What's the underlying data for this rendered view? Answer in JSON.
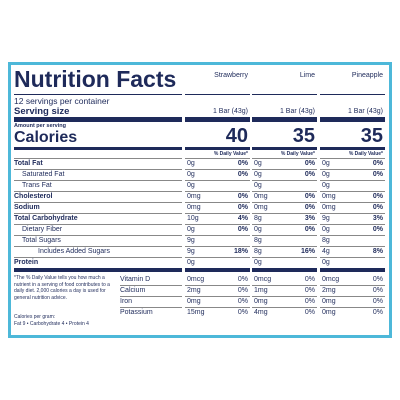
{
  "title": "Nutrition Facts",
  "flavors": [
    "Strawberry",
    "Lime",
    "Pineapple"
  ],
  "servings": "12 servings per container",
  "serving_size_label": "Serving size",
  "serving_sizes": [
    "1 Bar (43g)",
    "1 Bar (43g)",
    "1 Bar (43g)"
  ],
  "amount_per_serving": "Amount per serving",
  "calories_label": "Calories",
  "calories": [
    40,
    35,
    35
  ],
  "dv_header": "% Daily Value*",
  "nutrients": [
    {
      "name": "Total Fat",
      "bold": true,
      "indent": 0,
      "values": [
        {
          "amount": "0g",
          "dv": "0%"
        },
        {
          "amount": "0g",
          "dv": "0%"
        },
        {
          "amount": "0g",
          "dv": "0%"
        }
      ]
    },
    {
      "name": "Saturated Fat",
      "bold": false,
      "indent": 1,
      "values": [
        {
          "amount": "0g",
          "dv": "0%"
        },
        {
          "amount": "0g",
          "dv": "0%"
        },
        {
          "amount": "0g",
          "dv": "0%"
        }
      ]
    },
    {
      "name": "Trans Fat",
      "bold": false,
      "indent": 1,
      "values": [
        {
          "amount": "0g"
        },
        {
          "amount": "0g"
        },
        {
          "amount": "0g"
        }
      ]
    },
    {
      "name": "Cholesterol",
      "bold": true,
      "indent": 0,
      "values": [
        {
          "amount": "0mg",
          "dv": "0%"
        },
        {
          "amount": "0mg",
          "dv": "0%"
        },
        {
          "amount": "0mg",
          "dv": "0%"
        }
      ]
    },
    {
      "name": "Sodium",
      "bold": true,
      "indent": 0,
      "values": [
        {
          "amount": "0mg",
          "dv": "0%"
        },
        {
          "amount": "0mg",
          "dv": "0%"
        },
        {
          "amount": "0mg",
          "dv": "0%"
        }
      ]
    },
    {
      "name": "Total Carbohydrate",
      "bold": true,
      "indent": 0,
      "values": [
        {
          "amount": "10g",
          "dv": "4%"
        },
        {
          "amount": "8g",
          "dv": "3%"
        },
        {
          "amount": "9g",
          "dv": "3%"
        }
      ]
    },
    {
      "name": "Dietary Fiber",
      "bold": false,
      "indent": 1,
      "values": [
        {
          "amount": "0g",
          "dv": "0%"
        },
        {
          "amount": "0g",
          "dv": "0%"
        },
        {
          "amount": "0g",
          "dv": "0%"
        }
      ]
    },
    {
      "name": "Total Sugars",
      "bold": false,
      "indent": 1,
      "values": [
        {
          "amount": "9g"
        },
        {
          "amount": "8g"
        },
        {
          "amount": "8g"
        }
      ]
    },
    {
      "name": "Includes Added Sugars",
      "bold": false,
      "indent": 2,
      "values": [
        {
          "amount": "9g",
          "dv": "18%"
        },
        {
          "amount": "8g",
          "dv": "16%"
        },
        {
          "amount": "4g",
          "dv": "8%"
        }
      ]
    },
    {
      "name": "Protein",
      "bold": true,
      "indent": 0,
      "values": [
        {
          "amount": "0g"
        },
        {
          "amount": "0g"
        },
        {
          "amount": "0g"
        }
      ]
    }
  ],
  "vitamins": [
    {
      "name": "Vitamin D",
      "values": [
        {
          "amount": "0mcg",
          "dv": "0%"
        },
        {
          "amount": "0mcg",
          "dv": "0%"
        },
        {
          "amount": "0mcg",
          "dv": "0%"
        }
      ]
    },
    {
      "name": "Calcium",
      "values": [
        {
          "amount": "2mg",
          "dv": "0%"
        },
        {
          "amount": "1mg",
          "dv": "0%"
        },
        {
          "amount": "2mg",
          "dv": "0%"
        }
      ]
    },
    {
      "name": "Iron",
      "values": [
        {
          "amount": "0mg",
          "dv": "0%"
        },
        {
          "amount": "0mg",
          "dv": "0%"
        },
        {
          "amount": "0mg",
          "dv": "0%"
        }
      ]
    },
    {
      "name": "Potassium",
      "values": [
        {
          "amount": "15mg",
          "dv": "0%"
        },
        {
          "amount": "4mg",
          "dv": "0%"
        },
        {
          "amount": "0mg",
          "dv": "0%"
        }
      ]
    }
  ],
  "footnote": "*The % Daily Value tells you how much a nutrient in a serving of food contributes to a daily diet. 2,000 calories a day is used for general nutrition advice.",
  "calories_per_gram": "Calories per gram:",
  "calorie_factors": "Fat 9 • Carbohydrate 4 • Protein 4"
}
